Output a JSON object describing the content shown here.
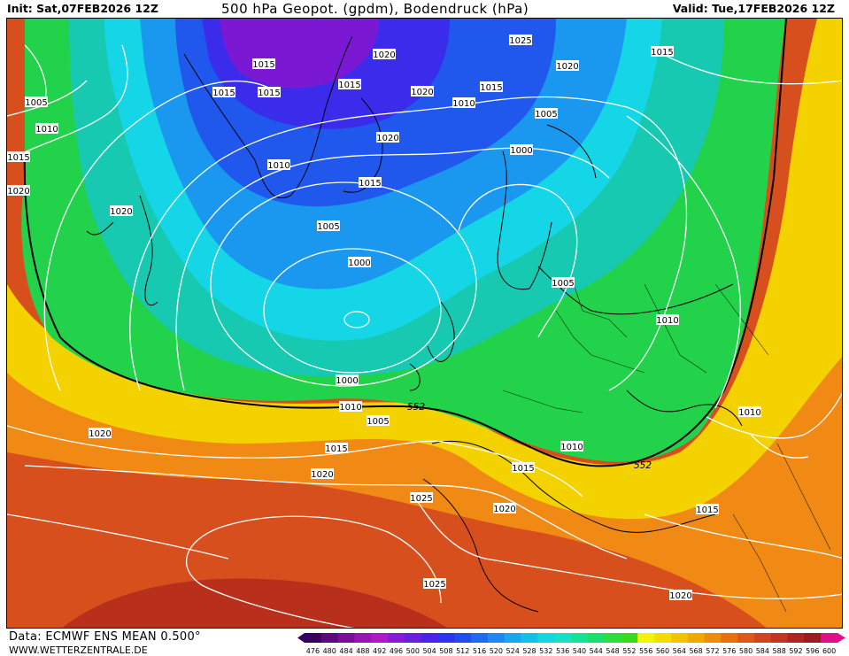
{
  "header": {
    "init": "Init: Sat,07FEB2026 12Z",
    "title": "500 hPa Geopot. (gpdm), Bodendruck (hPa)",
    "valid": "Valid: Tue,17FEB2026 12Z"
  },
  "footer": {
    "data_source": "Data: ECMWF ENS MEAN 0.500°",
    "website": "WWW.WETTERZENTRALE.DE"
  },
  "map": {
    "highlight_contour_label": "552",
    "pressure_labels": [
      "1025",
      "1015",
      "1020",
      "1015",
      "1015",
      "1015",
      "1015",
      "1020",
      "1020",
      "1005",
      "1010",
      "1015",
      "1010",
      "1005",
      "1020",
      "1015",
      "1010",
      "1020",
      "1000",
      "1015",
      "1020",
      "1005",
      "1000",
      "1005",
      "1010",
      "1000",
      "1010",
      "1005",
      "1010",
      "1020",
      "1015",
      "1015",
      "1020",
      "1025",
      "1020",
      "1015",
      "1025",
      "1020",
      "1010"
    ],
    "land_outline_color": "#000000",
    "isobar_color": "#ffffff"
  },
  "colorbar": {
    "ticks": [
      "476",
      "480",
      "484",
      "488",
      "492",
      "496",
      "500",
      "504",
      "508",
      "512",
      "516",
      "520",
      "524",
      "528",
      "532",
      "536",
      "540",
      "544",
      "548",
      "552",
      "556",
      "560",
      "564",
      "568",
      "572",
      "576",
      "580",
      "584",
      "588",
      "592",
      "596",
      "600"
    ],
    "colors": [
      "#3a0060",
      "#5c0a80",
      "#7c0d9b",
      "#9b12b5",
      "#b018c8",
      "#8a1ad6",
      "#6a1ee0",
      "#4a22ea",
      "#2c34ee",
      "#1f4ef0",
      "#1f6af0",
      "#1f88f0",
      "#18a6ee",
      "#12c0ea",
      "#12d6e0",
      "#14e2c0",
      "#16e296",
      "#18e06a",
      "#2ade3c",
      "#3cda1c",
      "#f2f500",
      "#f5dc00",
      "#f5c200",
      "#f3a800",
      "#ef8c0a",
      "#e8700f",
      "#dc5a16",
      "#d0461c",
      "#c0361e",
      "#ae2620",
      "#9a1b22",
      "#e0108a"
    ]
  }
}
